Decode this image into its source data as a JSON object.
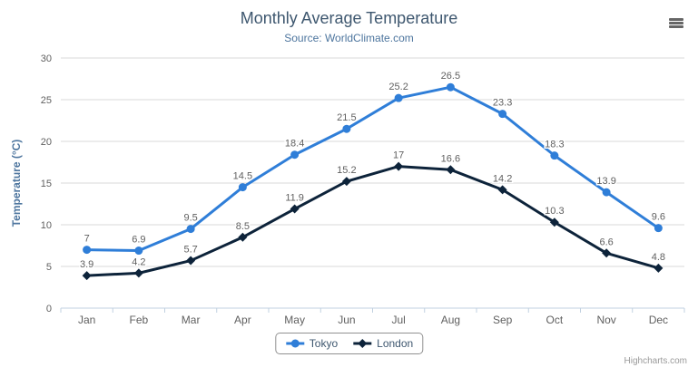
{
  "chart_data": {
    "type": "line",
    "title": "Monthly Average Temperature",
    "subtitle": "Source: WorldClimate.com",
    "categories": [
      "Jan",
      "Feb",
      "Mar",
      "Apr",
      "May",
      "Jun",
      "Jul",
      "Aug",
      "Sep",
      "Oct",
      "Nov",
      "Dec"
    ],
    "series": [
      {
        "name": "Tokyo",
        "color": "#2f7ed8",
        "marker": "circle",
        "values": [
          7,
          6.9,
          9.5,
          14.5,
          18.4,
          21.5,
          25.2,
          26.5,
          23.3,
          18.3,
          13.9,
          9.6
        ]
      },
      {
        "name": "London",
        "color": "#0d233a",
        "marker": "diamond",
        "values": [
          3.9,
          4.2,
          5.7,
          8.5,
          11.9,
          15.2,
          17,
          16.6,
          14.2,
          10.3,
          6.6,
          4.8
        ]
      }
    ],
    "xlabel": "",
    "ylabel": "Temperature (°C)",
    "ylim": [
      0,
      30
    ],
    "ytick_interval": 5,
    "grid": true,
    "data_labels": true,
    "legend_position": "bottom",
    "credit": "Highcharts.com"
  },
  "icons": {
    "menu": "hamburger-icon"
  },
  "colors": {
    "title": "#3e576f",
    "subtitle": "#4d759e",
    "axis_title": "#4d759e",
    "grid_line": "#d8d8d8",
    "axis_line": "#c0d0e0",
    "tick_label": "#606060",
    "data_label": "#606060",
    "legend_border": "#909090",
    "credit": "#9a9a9a",
    "menu_icon": "#666666"
  }
}
